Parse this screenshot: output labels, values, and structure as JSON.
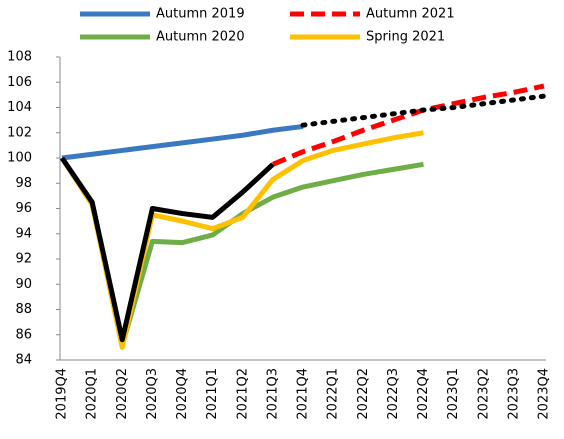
{
  "chart_data": {
    "type": "line",
    "categories": [
      "2019Q4",
      "2020Q1",
      "2020Q2",
      "2020Q3",
      "2020Q4",
      "2021Q1",
      "2021Q2",
      "2021Q3",
      "2021Q4",
      "2022Q1",
      "2022Q2",
      "2022Q3",
      "2022Q4",
      "2023Q1",
      "2023Q2",
      "2023Q3",
      "2023Q4"
    ],
    "series": [
      {
        "name": "Autumn 2019",
        "color": "#3a78c0",
        "style": "solid",
        "values": [
          100,
          100.3,
          100.6,
          100.9,
          101.2,
          101.5,
          101.8,
          102.2,
          102.5,
          null,
          null,
          null,
          null,
          null,
          null,
          null,
          null
        ]
      },
      {
        "name": "Autumn 2021",
        "color": "#ff0000",
        "style": "dash",
        "values": [
          null,
          null,
          null,
          null,
          null,
          null,
          null,
          99.5,
          100.5,
          101.3,
          102.2,
          103.0,
          103.8,
          104.3,
          104.8,
          105.2,
          105.7
        ]
      },
      {
        "name": "Autumn 2020",
        "color": "#6fad47",
        "style": "solid",
        "values": [
          100,
          96.5,
          85.2,
          93.4,
          93.3,
          93.9,
          95.6,
          96.9,
          97.7,
          98.2,
          98.7,
          99.1,
          99.5,
          null,
          null,
          null,
          null
        ]
      },
      {
        "name": "Spring 2021",
        "color": "#ffc000",
        "style": "solid",
        "values": [
          100,
          96.3,
          85.0,
          95.5,
          95.0,
          94.4,
          95.3,
          98.3,
          99.8,
          100.6,
          101.1,
          101.6,
          102.0,
          null,
          null,
          null,
          null
        ]
      },
      {
        "color": "#000000",
        "style": "solid",
        "values": [
          100,
          96.5,
          85.6,
          96.0,
          95.6,
          95.3,
          97.3,
          99.5,
          null,
          null,
          null,
          null,
          null,
          null,
          null,
          null,
          null
        ]
      },
      {
        "color": "#000000",
        "style": "dot",
        "values": [
          null,
          null,
          null,
          null,
          null,
          null,
          null,
          null,
          102.6,
          102.9,
          103.2,
          103.5,
          103.8,
          104.0,
          104.3,
          104.6,
          104.9
        ]
      }
    ],
    "ylim": [
      84,
      108
    ],
    "yticks": [
      84,
      86,
      88,
      90,
      92,
      94,
      96,
      98,
      100,
      102,
      104,
      106,
      108
    ],
    "grid": false
  }
}
